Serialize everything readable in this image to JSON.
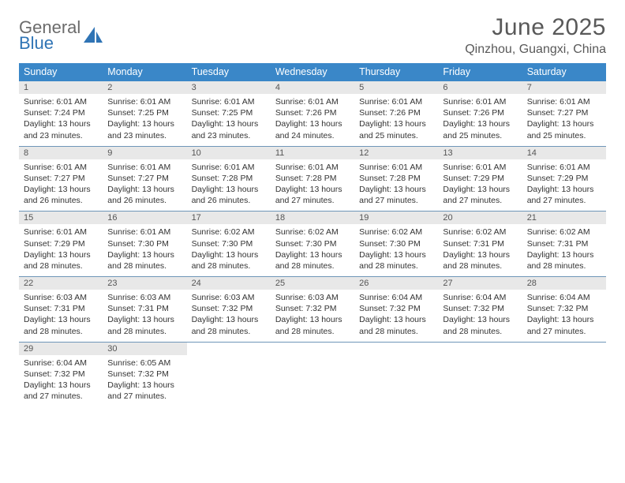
{
  "brand": {
    "name_top": "General",
    "name_bottom": "Blue",
    "text_color_top": "#6b6b6b",
    "text_color_bottom": "#2f74b5",
    "icon_color": "#2f74b5"
  },
  "header": {
    "title": "June 2025",
    "location": "Qinzhou, Guangxi, China",
    "title_color": "#595959",
    "title_fontsize": 30,
    "subtitle_fontsize": 16
  },
  "calendar": {
    "type": "table",
    "columns": [
      "Sunday",
      "Monday",
      "Tuesday",
      "Wednesday",
      "Thursday",
      "Friday",
      "Saturday"
    ],
    "header_bg": "#3a87c8",
    "header_fg": "#ffffff",
    "daynum_bg": "#e8e8e8",
    "row_divider_color": "#6f96b8",
    "cell_font_size": 10.5,
    "weeks": [
      {
        "days": [
          {
            "num": "1",
            "sunrise": "Sunrise: 6:01 AM",
            "sunset": "Sunset: 7:24 PM",
            "daylight": "Daylight: 13 hours and 23 minutes."
          },
          {
            "num": "2",
            "sunrise": "Sunrise: 6:01 AM",
            "sunset": "Sunset: 7:25 PM",
            "daylight": "Daylight: 13 hours and 23 minutes."
          },
          {
            "num": "3",
            "sunrise": "Sunrise: 6:01 AM",
            "sunset": "Sunset: 7:25 PM",
            "daylight": "Daylight: 13 hours and 23 minutes."
          },
          {
            "num": "4",
            "sunrise": "Sunrise: 6:01 AM",
            "sunset": "Sunset: 7:26 PM",
            "daylight": "Daylight: 13 hours and 24 minutes."
          },
          {
            "num": "5",
            "sunrise": "Sunrise: 6:01 AM",
            "sunset": "Sunset: 7:26 PM",
            "daylight": "Daylight: 13 hours and 25 minutes."
          },
          {
            "num": "6",
            "sunrise": "Sunrise: 6:01 AM",
            "sunset": "Sunset: 7:26 PM",
            "daylight": "Daylight: 13 hours and 25 minutes."
          },
          {
            "num": "7",
            "sunrise": "Sunrise: 6:01 AM",
            "sunset": "Sunset: 7:27 PM",
            "daylight": "Daylight: 13 hours and 25 minutes."
          }
        ]
      },
      {
        "days": [
          {
            "num": "8",
            "sunrise": "Sunrise: 6:01 AM",
            "sunset": "Sunset: 7:27 PM",
            "daylight": "Daylight: 13 hours and 26 minutes."
          },
          {
            "num": "9",
            "sunrise": "Sunrise: 6:01 AM",
            "sunset": "Sunset: 7:27 PM",
            "daylight": "Daylight: 13 hours and 26 minutes."
          },
          {
            "num": "10",
            "sunrise": "Sunrise: 6:01 AM",
            "sunset": "Sunset: 7:28 PM",
            "daylight": "Daylight: 13 hours and 26 minutes."
          },
          {
            "num": "11",
            "sunrise": "Sunrise: 6:01 AM",
            "sunset": "Sunset: 7:28 PM",
            "daylight": "Daylight: 13 hours and 27 minutes."
          },
          {
            "num": "12",
            "sunrise": "Sunrise: 6:01 AM",
            "sunset": "Sunset: 7:28 PM",
            "daylight": "Daylight: 13 hours and 27 minutes."
          },
          {
            "num": "13",
            "sunrise": "Sunrise: 6:01 AM",
            "sunset": "Sunset: 7:29 PM",
            "daylight": "Daylight: 13 hours and 27 minutes."
          },
          {
            "num": "14",
            "sunrise": "Sunrise: 6:01 AM",
            "sunset": "Sunset: 7:29 PM",
            "daylight": "Daylight: 13 hours and 27 minutes."
          }
        ]
      },
      {
        "days": [
          {
            "num": "15",
            "sunrise": "Sunrise: 6:01 AM",
            "sunset": "Sunset: 7:29 PM",
            "daylight": "Daylight: 13 hours and 28 minutes."
          },
          {
            "num": "16",
            "sunrise": "Sunrise: 6:01 AM",
            "sunset": "Sunset: 7:30 PM",
            "daylight": "Daylight: 13 hours and 28 minutes."
          },
          {
            "num": "17",
            "sunrise": "Sunrise: 6:02 AM",
            "sunset": "Sunset: 7:30 PM",
            "daylight": "Daylight: 13 hours and 28 minutes."
          },
          {
            "num": "18",
            "sunrise": "Sunrise: 6:02 AM",
            "sunset": "Sunset: 7:30 PM",
            "daylight": "Daylight: 13 hours and 28 minutes."
          },
          {
            "num": "19",
            "sunrise": "Sunrise: 6:02 AM",
            "sunset": "Sunset: 7:30 PM",
            "daylight": "Daylight: 13 hours and 28 minutes."
          },
          {
            "num": "20",
            "sunrise": "Sunrise: 6:02 AM",
            "sunset": "Sunset: 7:31 PM",
            "daylight": "Daylight: 13 hours and 28 minutes."
          },
          {
            "num": "21",
            "sunrise": "Sunrise: 6:02 AM",
            "sunset": "Sunset: 7:31 PM",
            "daylight": "Daylight: 13 hours and 28 minutes."
          }
        ]
      },
      {
        "days": [
          {
            "num": "22",
            "sunrise": "Sunrise: 6:03 AM",
            "sunset": "Sunset: 7:31 PM",
            "daylight": "Daylight: 13 hours and 28 minutes."
          },
          {
            "num": "23",
            "sunrise": "Sunrise: 6:03 AM",
            "sunset": "Sunset: 7:31 PM",
            "daylight": "Daylight: 13 hours and 28 minutes."
          },
          {
            "num": "24",
            "sunrise": "Sunrise: 6:03 AM",
            "sunset": "Sunset: 7:32 PM",
            "daylight": "Daylight: 13 hours and 28 minutes."
          },
          {
            "num": "25",
            "sunrise": "Sunrise: 6:03 AM",
            "sunset": "Sunset: 7:32 PM",
            "daylight": "Daylight: 13 hours and 28 minutes."
          },
          {
            "num": "26",
            "sunrise": "Sunrise: 6:04 AM",
            "sunset": "Sunset: 7:32 PM",
            "daylight": "Daylight: 13 hours and 28 minutes."
          },
          {
            "num": "27",
            "sunrise": "Sunrise: 6:04 AM",
            "sunset": "Sunset: 7:32 PM",
            "daylight": "Daylight: 13 hours and 28 minutes."
          },
          {
            "num": "28",
            "sunrise": "Sunrise: 6:04 AM",
            "sunset": "Sunset: 7:32 PM",
            "daylight": "Daylight: 13 hours and 27 minutes."
          }
        ]
      },
      {
        "days": [
          {
            "num": "29",
            "sunrise": "Sunrise: 6:04 AM",
            "sunset": "Sunset: 7:32 PM",
            "daylight": "Daylight: 13 hours and 27 minutes."
          },
          {
            "num": "30",
            "sunrise": "Sunrise: 6:05 AM",
            "sunset": "Sunset: 7:32 PM",
            "daylight": "Daylight: 13 hours and 27 minutes."
          },
          null,
          null,
          null,
          null,
          null
        ]
      }
    ]
  }
}
